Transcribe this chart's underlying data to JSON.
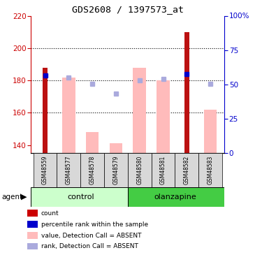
{
  "title": "GDS2608 / 1397573_at",
  "samples": [
    "GSM48559",
    "GSM48577",
    "GSM48578",
    "GSM48579",
    "GSM48580",
    "GSM48581",
    "GSM48582",
    "GSM48583"
  ],
  "red_bars": [
    188,
    null,
    null,
    null,
    null,
    null,
    210,
    null
  ],
  "pink_bars": [
    null,
    182,
    148,
    141,
    188,
    180,
    null,
    162
  ],
  "blue_dark": [
    183,
    null,
    null,
    null,
    null,
    null,
    184,
    null
  ],
  "blue_light": [
    null,
    182,
    178,
    172,
    180,
    181,
    null,
    178
  ],
  "ylim_left": [
    135,
    220
  ],
  "ylim_right": [
    0,
    100
  ],
  "yticks_left": [
    140,
    160,
    180,
    200,
    220
  ],
  "yticks_right": [
    0,
    25,
    50,
    75,
    100
  ],
  "left_color": "#cc0000",
  "right_color": "#0000cc",
  "grid_lines": [
    160,
    180,
    200
  ],
  "control_color_light": "#ccffcc",
  "olanzapine_color_dark": "#44cc44",
  "legend_colors": [
    "#cc0000",
    "#0000cc",
    "#ffbbbb",
    "#aaaadd"
  ],
  "legend_labels": [
    "count",
    "percentile rank within the sample",
    "value, Detection Call = ABSENT",
    "rank, Detection Call = ABSENT"
  ]
}
